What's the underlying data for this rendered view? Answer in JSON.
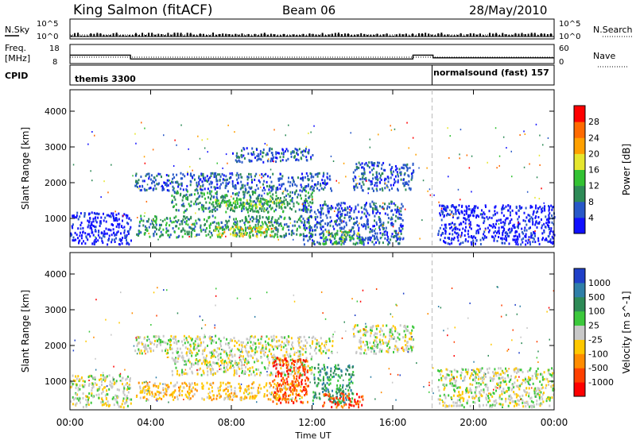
{
  "header": {
    "station": "King Salmon (fitACF)",
    "beam": "Beam 06",
    "date": "28/May/2010"
  },
  "summary": {
    "nsky_label": "N.Sky",
    "nsky_ticks": [
      "10^5",
      "10^0"
    ],
    "nsearch_label": "N.Search",
    "nsearch_ticks": [
      "10^5",
      "10^0"
    ],
    "freq_label_1": "Freq.",
    "freq_label_2": "[MHz]",
    "freq_ticks": [
      "18",
      "8"
    ],
    "nave_label": "Nave",
    "nave_ticks": [
      "60",
      "0"
    ],
    "cpid_label": "CPID",
    "cpid_segments": [
      {
        "name": "themis 3300",
        "start_hr": 0,
        "end_hr": 17.95
      },
      {
        "name": "normalsound (fast) 157",
        "start_hr": 17.95,
        "end_hr": 24
      }
    ],
    "freq_steps": [
      {
        "start_hr": 0,
        "end_hr": 3.0,
        "mhz": 12.4
      },
      {
        "start_hr": 3.0,
        "end_hr": 17.0,
        "mhz": 10.4
      },
      {
        "start_hr": 17.0,
        "end_hr": 18.0,
        "mhz": 12.4
      },
      {
        "start_hr": 18.0,
        "end_hr": 24,
        "mhz": 11.0
      }
    ]
  },
  "chart_data": [
    {
      "type": "heatmap",
      "panel": "power",
      "xlabel": "Time UT",
      "ylabel": "Slant Range [km]",
      "xlim": [
        0,
        24
      ],
      "ylim": [
        200,
        4600
      ],
      "x_ticks": [
        "00:00",
        "04:00",
        "08:00",
        "12:00",
        "16:00",
        "20:00",
        "00:00"
      ],
      "y_ticks": [
        "1000",
        "2000",
        "3000",
        "4000"
      ],
      "colorbar_label": "Power [dB]",
      "colorbar_ticks": [
        "4",
        "8",
        "12",
        "16",
        "20",
        "24",
        "28"
      ],
      "colorbar_colors": [
        "#1010ff",
        "#2858c8",
        "#2e8b57",
        "#33c233",
        "#e6e62e",
        "#ffa000",
        "#ff6a00",
        "#ff0000"
      ],
      "echo_regions": [
        {
          "t0": 3.2,
          "t1": 13.0,
          "r0": 1800,
          "r1": 2300,
          "level": 1
        },
        {
          "t0": 5.0,
          "t1": 12.0,
          "r0": 1200,
          "r1": 1800,
          "level": 2
        },
        {
          "t0": 7.0,
          "t1": 10.5,
          "r0": 1300,
          "r1": 1600,
          "level": 3
        },
        {
          "t0": 3.2,
          "t1": 12.0,
          "r0": 500,
          "r1": 1100,
          "level": 2
        },
        {
          "t0": 7.0,
          "t1": 10.0,
          "r0": 500,
          "r1": 800,
          "level": 4
        },
        {
          "t0": 11.5,
          "t1": 16.5,
          "r0": 300,
          "r1": 1500,
          "level": 1
        },
        {
          "t0": 12.5,
          "t1": 14.5,
          "r0": 300,
          "r1": 700,
          "level": 3
        },
        {
          "t0": 14.0,
          "t1": 17.0,
          "r0": 1800,
          "r1": 2600,
          "level": 1
        },
        {
          "t0": 8.0,
          "t1": 12.0,
          "r0": 2600,
          "r1": 3000,
          "level": 1
        },
        {
          "t0": 18.2,
          "t1": 24.0,
          "r0": 300,
          "r1": 1400,
          "level": 0
        },
        {
          "t0": 0.0,
          "t1": 3.0,
          "r0": 300,
          "r1": 1200,
          "level": 0
        }
      ]
    },
    {
      "type": "heatmap",
      "panel": "velocity",
      "xlabel": "Time UT",
      "ylabel": "Slant Range [km]",
      "xlim": [
        0,
        24
      ],
      "ylim": [
        200,
        4600
      ],
      "x_ticks": [
        "00:00",
        "04:00",
        "08:00",
        "12:00",
        "16:00",
        "20:00",
        "00:00"
      ],
      "y_ticks": [
        "1000",
        "2000",
        "3000",
        "4000"
      ],
      "colorbar_label": "Velocity [m s^-1]",
      "colorbar_ticks": [
        "1000",
        "500",
        "100",
        "25",
        "-25",
        "-100",
        "-500",
        "-1000"
      ],
      "colorbar_colors": [
        "#2040c8",
        "#2f7fa8",
        "#2e8b57",
        "#3cc83c",
        "#c8c8c8",
        "#ffc800",
        "#ff8c00",
        "#ff4000",
        "#ff0000"
      ],
      "echo_regions": [
        {
          "t0": 3.2,
          "t1": 13.0,
          "r0": 1800,
          "r1": 2300,
          "level": 4
        },
        {
          "t0": 5.0,
          "t1": 12.0,
          "r0": 1200,
          "r1": 1800,
          "level": 4
        },
        {
          "t0": 3.2,
          "t1": 11.5,
          "r0": 500,
          "r1": 1000,
          "level": 5
        },
        {
          "t0": 10.0,
          "t1": 11.8,
          "r0": 400,
          "r1": 1700,
          "level": 7
        },
        {
          "t0": 12.0,
          "t1": 14.0,
          "r0": 400,
          "r1": 1500,
          "level": 2
        },
        {
          "t0": 12.5,
          "t1": 14.5,
          "r0": 300,
          "r1": 700,
          "level": 7
        },
        {
          "t0": 14.0,
          "t1": 17.0,
          "r0": 1800,
          "r1": 2600,
          "level": 4
        },
        {
          "t0": 18.2,
          "t1": 24.0,
          "r0": 300,
          "r1": 1400,
          "level": 4
        },
        {
          "t0": 0.0,
          "t1": 3.0,
          "r0": 300,
          "r1": 1200,
          "level": 4
        }
      ]
    }
  ]
}
